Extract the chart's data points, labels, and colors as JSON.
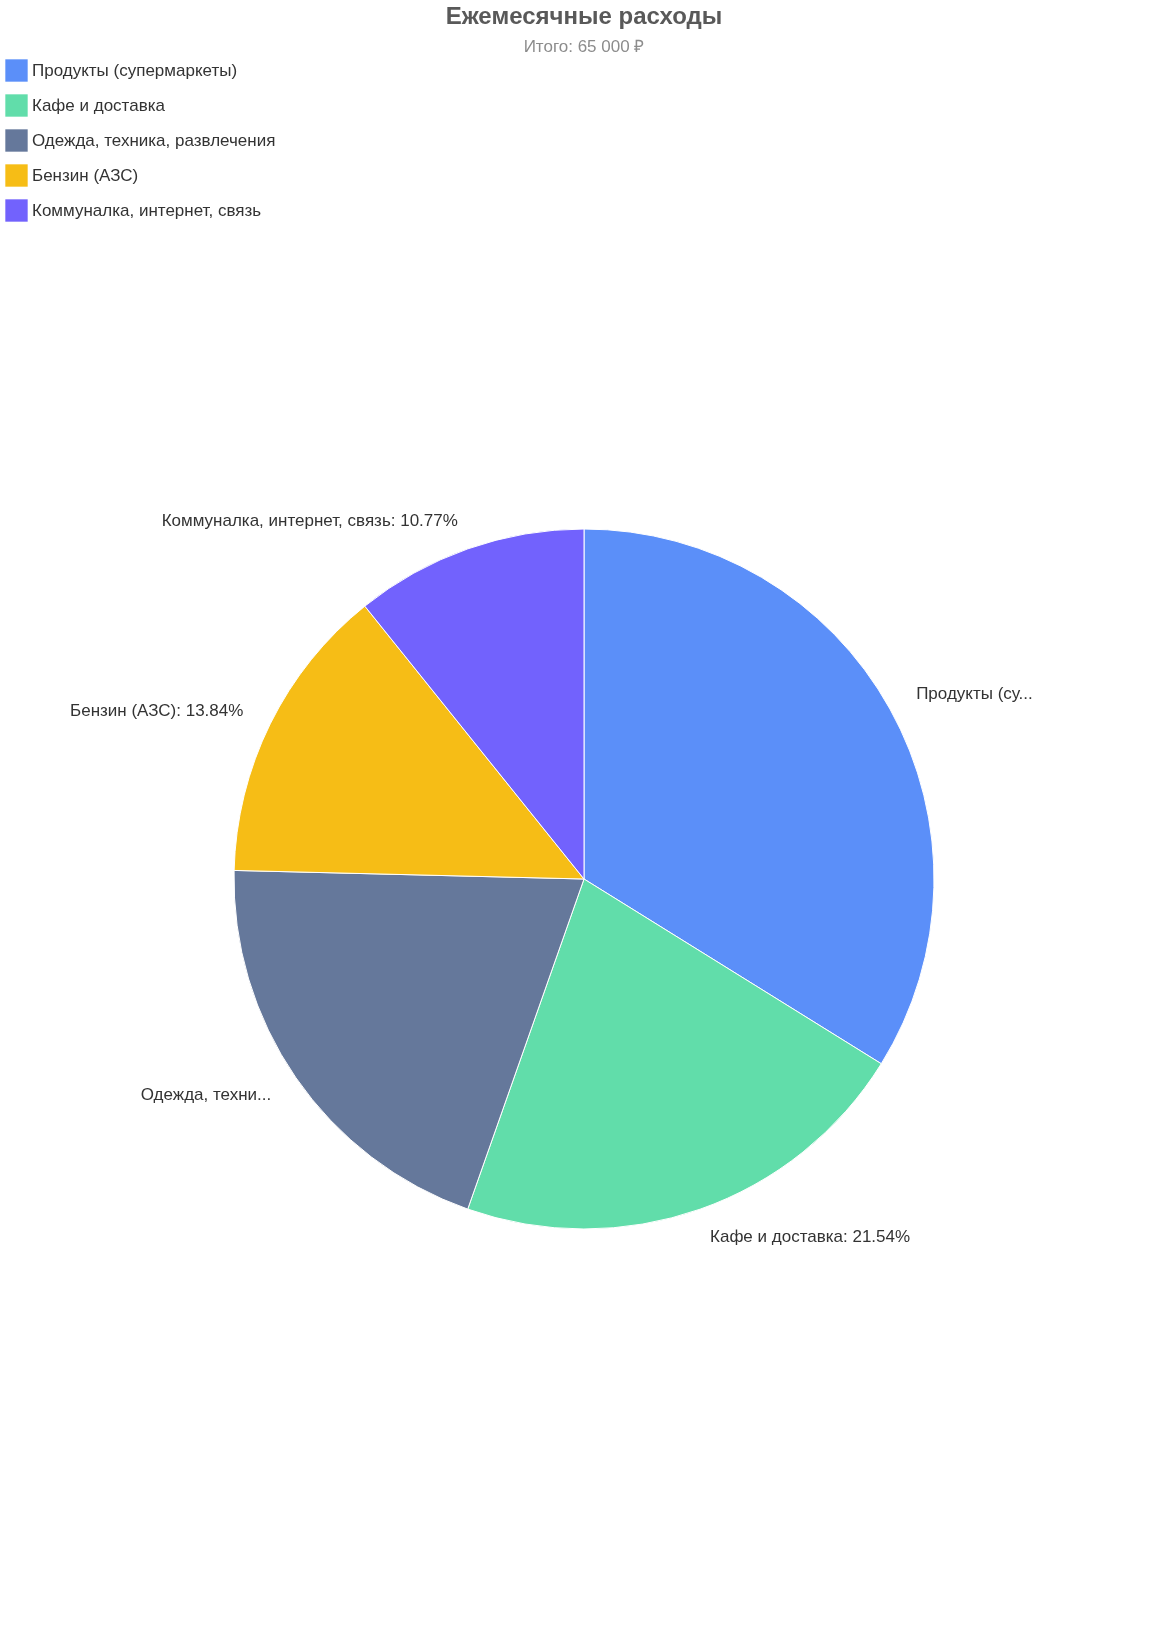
{
  "chart_data": {
    "type": "pie",
    "title": "Ежемесячные расходы",
    "subtitle": "Итого: 65 000 ₽",
    "categories": [
      "Продукты (супермаркеты)",
      "Кафе и доставка",
      "Одежда, техника, развлечения",
      "Бензин (АЗС)",
      "Коммуналка, интернет, связь"
    ],
    "values": [
      33.85,
      21.54,
      20.0,
      13.84,
      10.77
    ],
    "colors": [
      "#5b8ff9",
      "#61ddaa",
      "#65789b",
      "#f6bd16",
      "#7262fd"
    ],
    "value_labels": [
      "Продукты (су...",
      "Кафе и доставка: 21.54%",
      "Одежда, техни...",
      "Бензин (АЗС): 13.84%",
      "Коммуналка, интернет, связь: 10.77%"
    ],
    "legend": "top left"
  }
}
